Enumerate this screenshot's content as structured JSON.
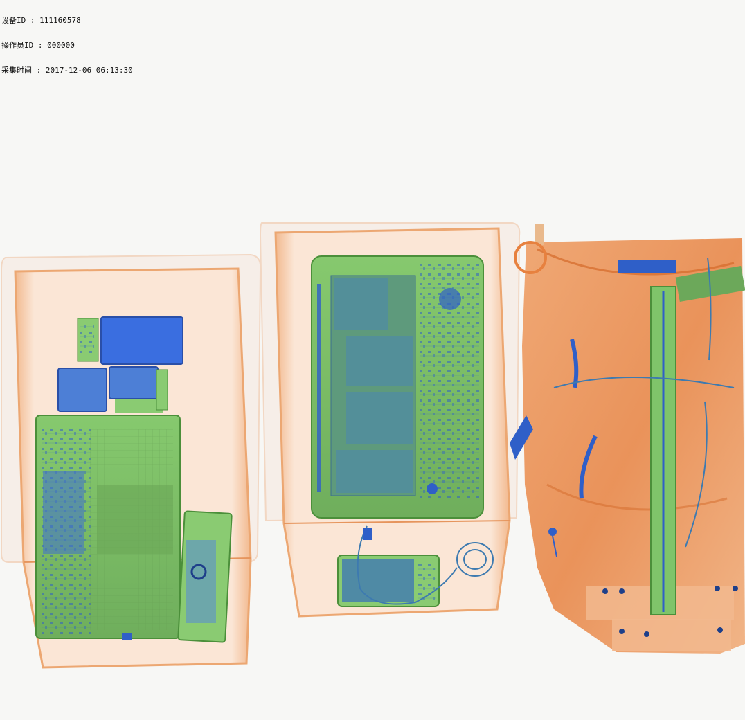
{
  "scan_info": {
    "device_id_line": "设备ID : 111160578",
    "operator_id_line": "操作员ID : 000000",
    "capture_time_line": "采集时间 : 2017-12-06 06:13:30"
  },
  "colors": {
    "background": "#f7f7f5",
    "tray_orange": "#e8894a",
    "tray_fill": "#fbe9dc",
    "organic_orange": "#e2742e",
    "electronics_green": "#7fc46a",
    "metal_blue": "#2f5fc8"
  }
}
